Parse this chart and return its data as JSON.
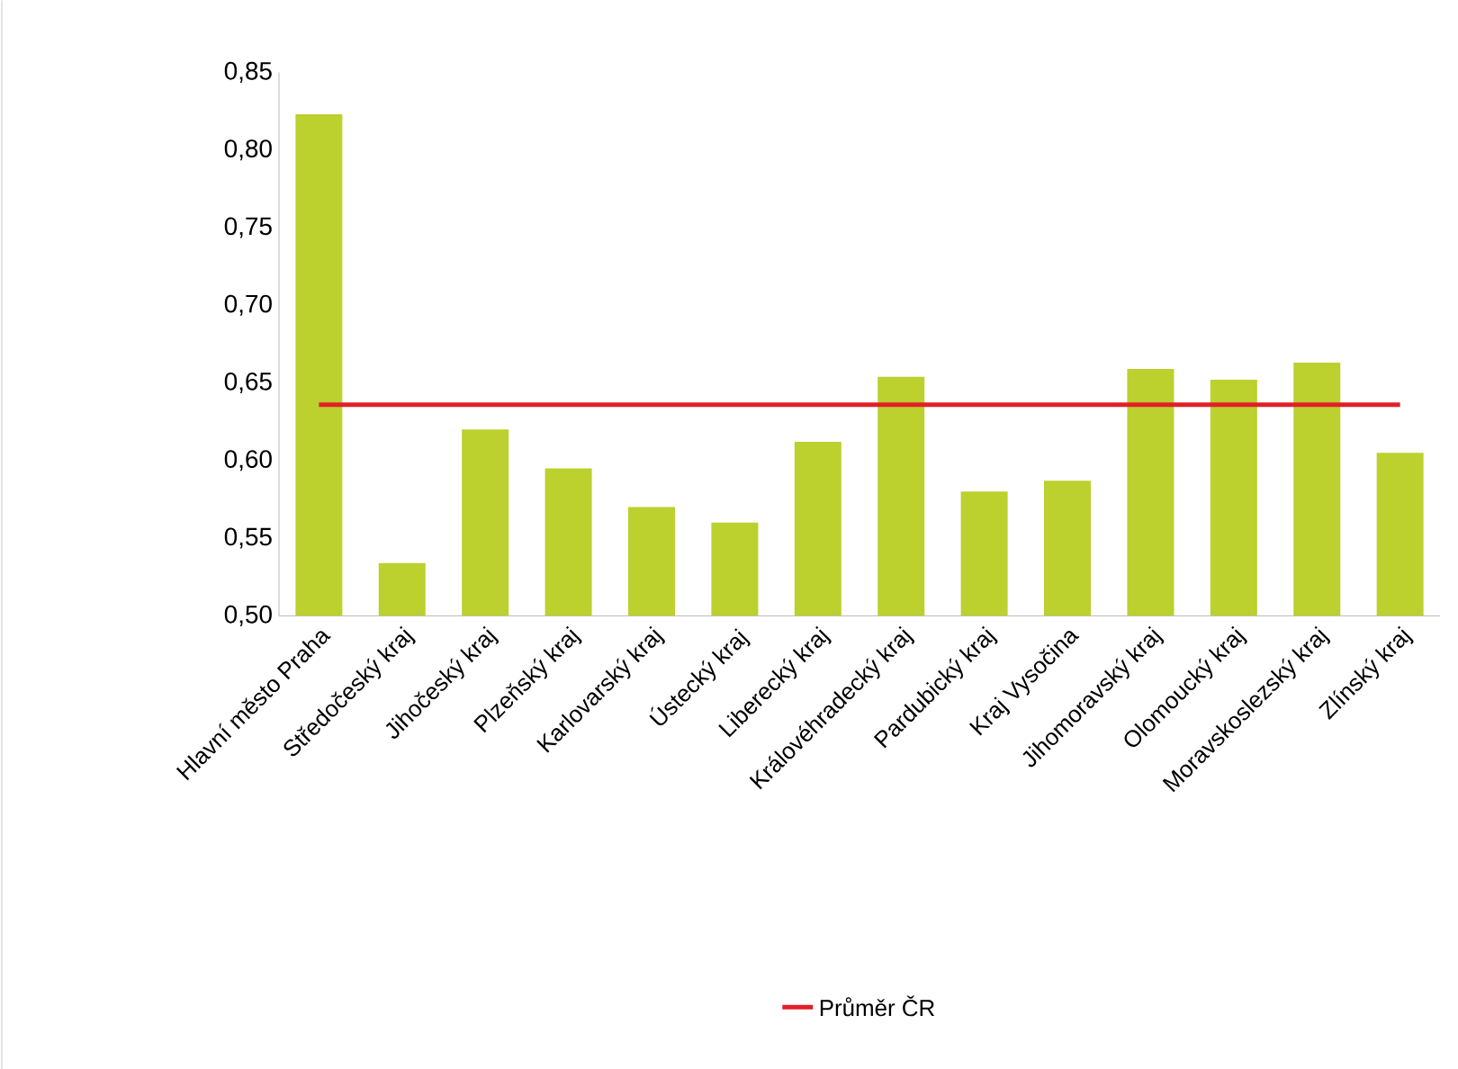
{
  "chart_data": {
    "type": "bar",
    "categories": [
      "Hlavní město Praha",
      "Středočeský kraj",
      "Jihočeský kraj",
      "Plzeňský kraj",
      "Karlovarský kraj",
      "Ústecký kraj",
      "Liberecký kraj",
      "Královéhradecký kraj",
      "Pardubický kraj",
      "Kraj Vysočina",
      "Jihomoravský kraj",
      "Olomoucký kraj",
      "Moravskoslezský kraj",
      "Zlínský kraj"
    ],
    "series": [
      {
        "color": "#bcd02e",
        "values": [
          0.823,
          0.534,
          0.62,
          0.595,
          0.57,
          0.56,
          0.612,
          0.654,
          0.58,
          0.587,
          0.659,
          0.652,
          0.663,
          0.605
        ]
      },
      {
        "type": "line",
        "name": "Průměr ČR",
        "color": "#e0202a",
        "values": [
          0.636,
          0.636,
          0.636,
          0.636,
          0.636,
          0.636,
          0.636,
          0.636,
          0.636,
          0.636,
          0.636,
          0.636,
          0.636,
          0.636
        ]
      }
    ],
    "ylim": [
      0.5,
      0.85
    ],
    "yticks": [
      {
        "value": 0.5,
        "label": "0,50"
      },
      {
        "value": 0.55,
        "label": "0,55"
      },
      {
        "value": 0.6,
        "label": "0,60"
      },
      {
        "value": 0.65,
        "label": "0,65"
      },
      {
        "value": 0.7,
        "label": "0,70"
      },
      {
        "value": 0.75,
        "label": "0,75"
      },
      {
        "value": 0.8,
        "label": "0,80"
      },
      {
        "value": 0.85,
        "label": "0,85"
      }
    ],
    "grid": false,
    "legend": "bottom"
  }
}
